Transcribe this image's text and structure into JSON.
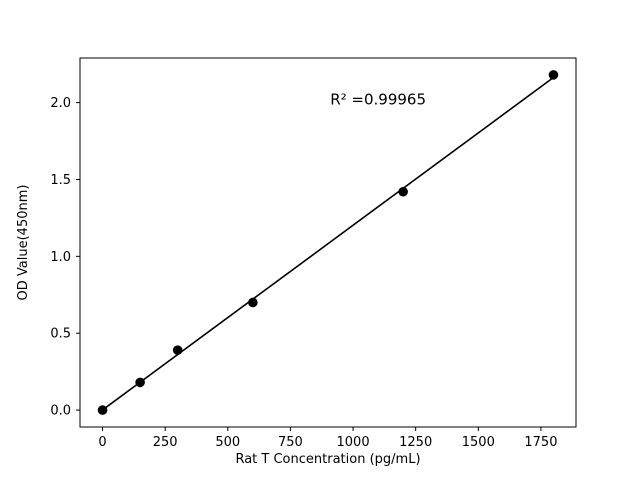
{
  "chart_data": {
    "type": "scatter",
    "title": "",
    "xlabel": "Rat T Concentration (pg/mL)",
    "ylabel": "OD Value(450nm)",
    "annotation": {
      "text": "R² =0.99965",
      "x": 1100,
      "y": 2.02
    },
    "x": [
      0,
      150,
      300,
      600,
      1200,
      1800
    ],
    "y": [
      0.0,
      0.18,
      0.39,
      0.7,
      1.42,
      2.18
    ],
    "fit_line": {
      "x": [
        0,
        1800
      ],
      "y": [
        0.001,
        2.163
      ]
    },
    "xlim": [
      -90,
      1890
    ],
    "ylim": [
      -0.11,
      2.29
    ],
    "xticks": [
      0,
      250,
      500,
      750,
      1000,
      1250,
      1500,
      1750
    ],
    "ytick_values": [
      0.0,
      0.5,
      1.0,
      1.5,
      2.0
    ],
    "ytick_labels": [
      "0.0",
      "0.5",
      "1.0",
      "1.5",
      "2.0"
    ],
    "marker_color": "#000000",
    "line_color": "#000000",
    "grid": false,
    "legend": "none"
  }
}
